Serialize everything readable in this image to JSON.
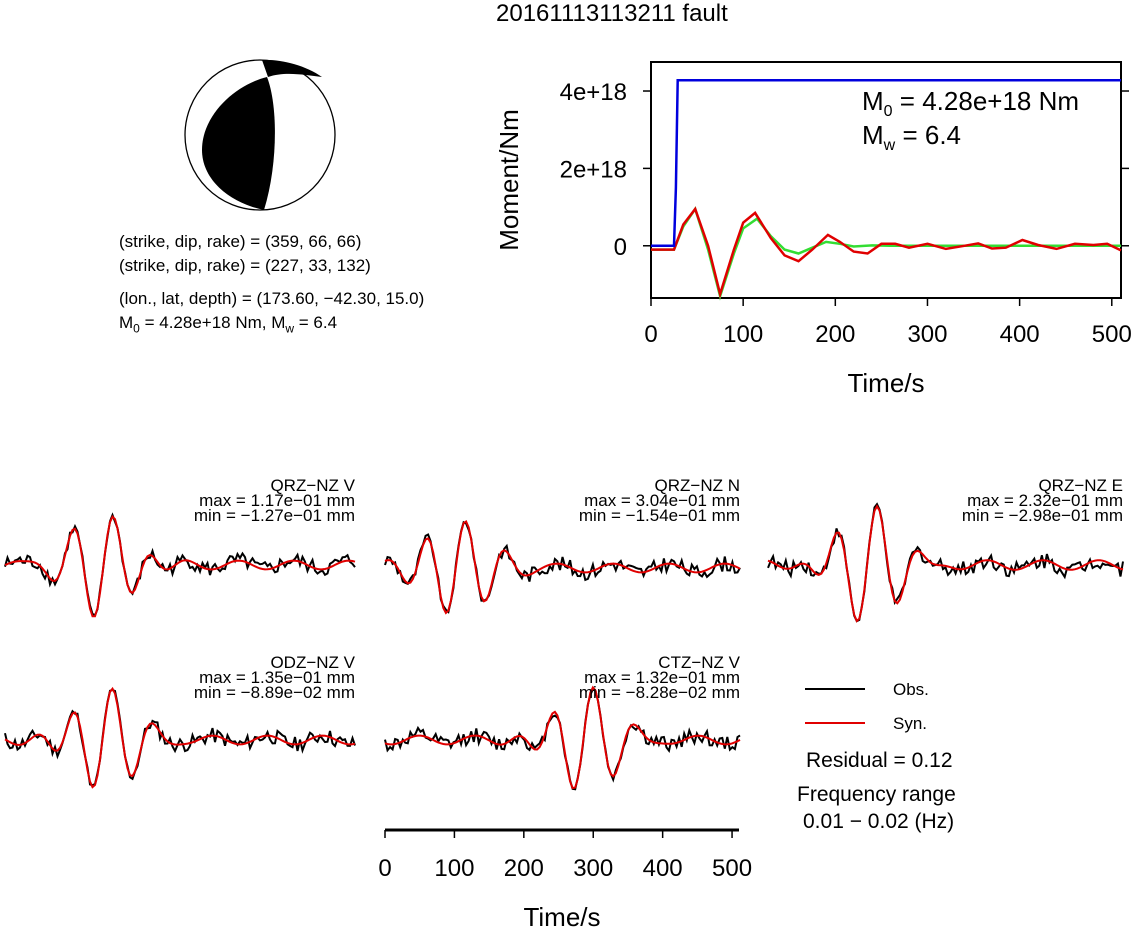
{
  "title": "20161113113211 fault",
  "info": {
    "plane1": "(strike, dip, rake) = (359, 66, 66)",
    "plane2": "(strike, dip, rake) = (227, 33, 132)",
    "location": "(lon., lat, depth) = (173.60, −42.30, 15.0)",
    "moment_prefix": "M",
    "moment_sub": "0",
    "moment_mid": " = 4.28e+18 Nm, M",
    "moment_sub2": "w",
    "moment_end": " = 6.4"
  },
  "moment_box": {
    "m0_label": "M",
    "m0_sub": "0",
    "m0_value": " = 4.28e+18 Nm",
    "mw_label": "M",
    "mw_sub": "w",
    "mw_value": " = 6.4"
  },
  "legend": {
    "obs": "Obs.",
    "syn": "Syn.",
    "residual": "Residual = 0.12",
    "freq_title": "Frequency range",
    "freq_value": "0.01 − 0.02 (Hz)"
  },
  "colors": {
    "obs": "#000000",
    "syn": "#e00000",
    "moment": "#0000dd",
    "moment_green": "#33dd33"
  },
  "chart_data": [
    {
      "type": "line",
      "title": "",
      "xlabel": "Time/s",
      "ylabel": "Moment/Nm",
      "xlim": [
        0,
        510
      ],
      "ylim": [
        -1.35e+18,
        4.75e+18
      ],
      "xticks": [
        0,
        100,
        200,
        300,
        400,
        500
      ],
      "yticks": [
        0,
        2e+18,
        4e+18
      ],
      "ytick_labels": [
        "0",
        "2e+18",
        "4e+18"
      ],
      "series": [
        {
          "color": "blue",
          "x": [
            0,
            25,
            27,
            29,
            510
          ],
          "y": [
            0,
            0,
            1.5e+18,
            4.28e+18,
            4.28e+18
          ]
        },
        {
          "color": "green",
          "x": [
            0,
            25,
            35,
            48,
            62,
            75,
            90,
            100,
            115,
            130,
            145,
            160,
            175,
            190,
            205,
            220,
            240,
            260,
            290,
            510
          ],
          "y": [
            -1e+17,
            -1e+17,
            5e+17,
            9.5e+17,
            -1e+17,
            -1.3e+18,
            -2e+17,
            4.5e+17,
            7e+17,
            2.5e+17,
            -1e+17,
            -2e+17,
            -5e+16,
            1e+17,
            5e+16,
            -2e+16,
            1e+16,
            0,
            0,
            0
          ]
        },
        {
          "color": "red",
          "x": [
            0,
            25,
            35,
            48,
            62,
            75,
            90,
            100,
            113,
            130,
            145,
            160,
            175,
            192,
            205,
            220,
            235,
            250,
            265,
            280,
            300,
            320,
            340,
            355,
            370,
            385,
            403,
            420,
            440,
            460,
            480,
            495,
            510
          ],
          "y": [
            -1e+17,
            -1e+17,
            5.5e+17,
            9.5e+17,
            0,
            -1.25e+18,
            -1e+17,
            6e+17,
            8.5e+17,
            2e+17,
            -2.5e+17,
            -4e+17,
            -1e+17,
            2.8e+17,
            1e+17,
            -1.5e+17,
            -2e+17,
            5e+16,
            5e+16,
            -5e+16,
            5e+16,
            -8e+16,
            0,
            6e+16,
            -7e+16,
            -5e+16,
            1.5e+17,
            2e+16,
            -8e+16,
            5e+16,
            2e+16,
            5e+16,
            -1.2e+17
          ]
        }
      ]
    },
    {
      "type": "line",
      "xlabel": "Time/s",
      "xlim": [
        0,
        510
      ],
      "xticks": [
        0,
        100,
        200,
        300,
        400,
        500
      ],
      "stations": [
        {
          "name": "QRZ−NZ V",
          "max": "max = 1.17e−01 mm",
          "min": "min = −1.27e−01 mm"
        },
        {
          "name": "QRZ−NZ N",
          "max": "max = 3.04e−01 mm",
          "min": "min = −1.54e−01 mm"
        },
        {
          "name": "QRZ−NZ E",
          "max": "max = 2.32e−01 mm",
          "min": "min = −2.98e−01 mm"
        },
        {
          "name": "ODZ−NZ V",
          "max": "max = 1.35e−01 mm",
          "min": "min = −8.89e−02 mm"
        },
        {
          "name": "CTZ−NZ V",
          "max": "max = 1.32e−01 mm",
          "min": "min = −8.28e−02 mm"
        }
      ]
    }
  ]
}
